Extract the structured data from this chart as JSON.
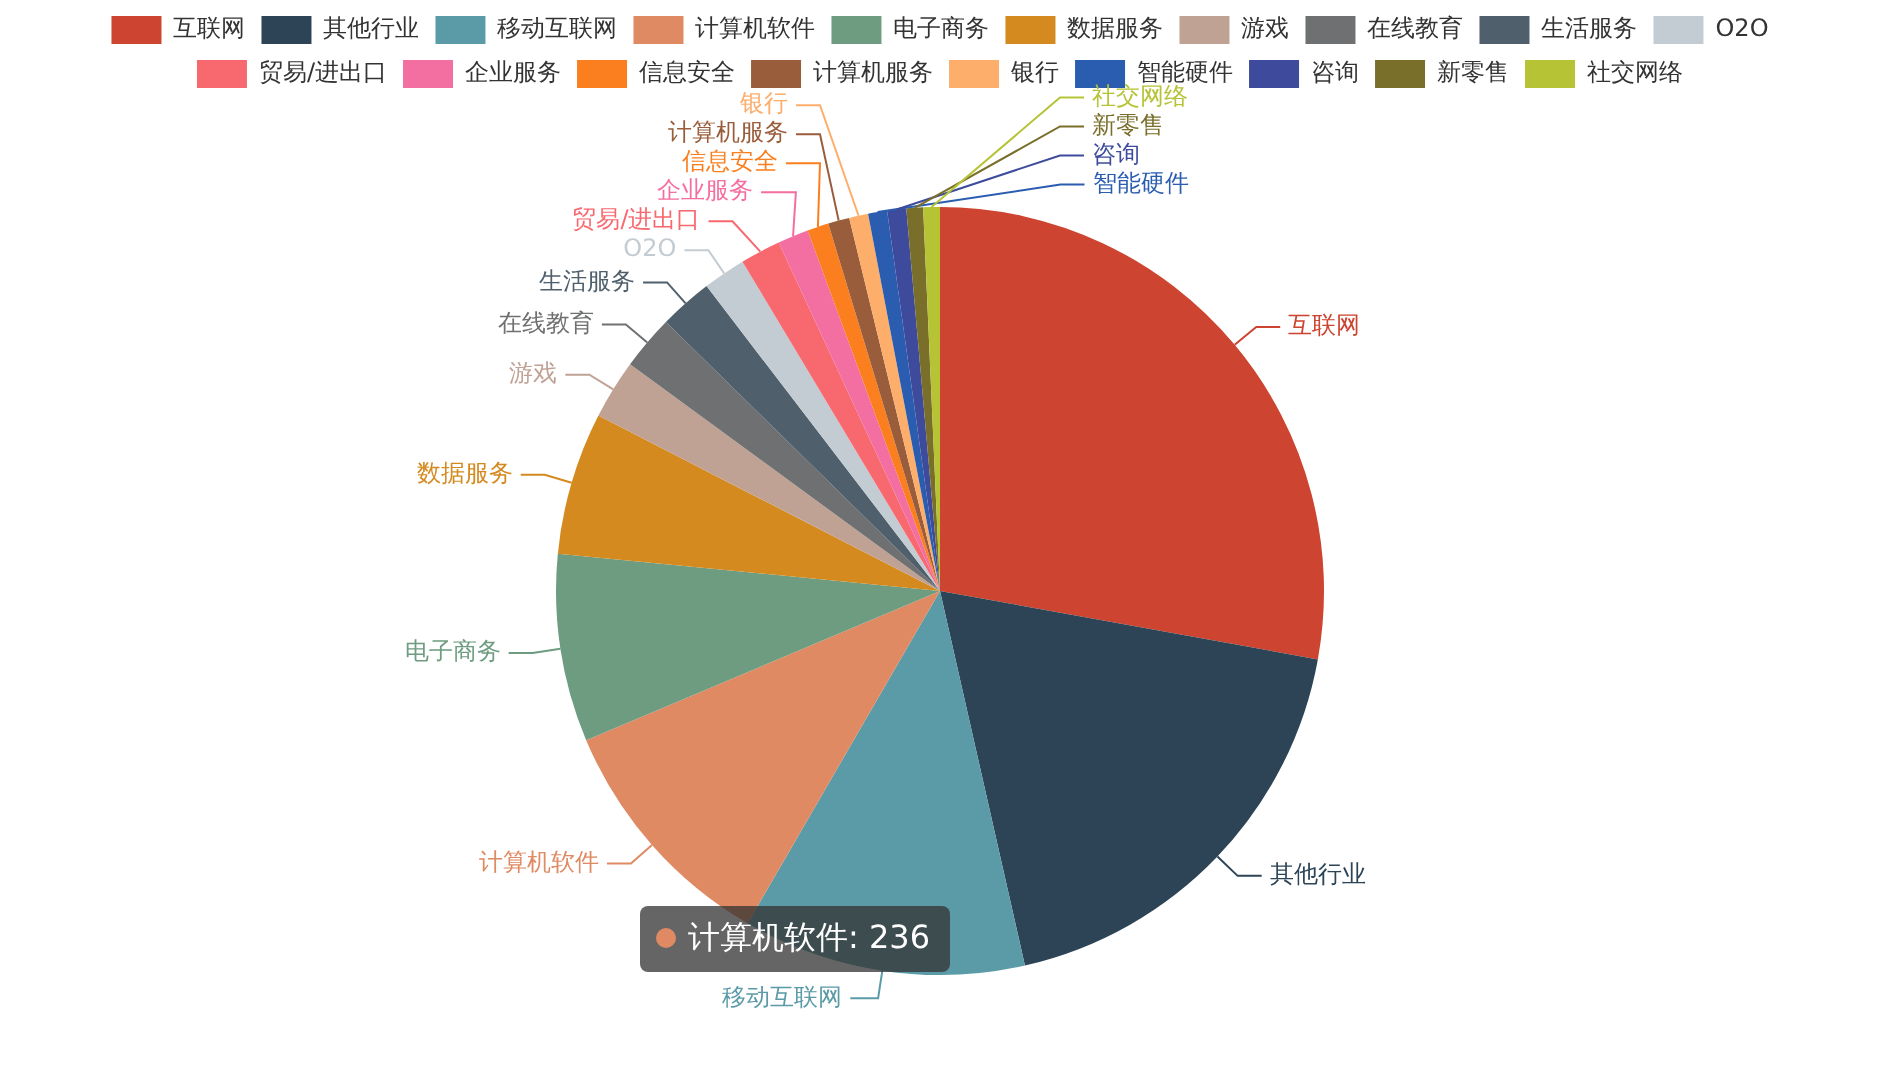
{
  "chart_data": {
    "type": "pie",
    "legend": "top",
    "categories": [
      "互联网",
      "其他行业",
      "移动互联网",
      "计算机软件",
      "电子商务",
      "数据服务",
      "游戏",
      "在线教育",
      "生活服务",
      "O2O",
      "贸易/进出口",
      "企业服务",
      "信息安全",
      "计算机服务",
      "银行",
      "智能硬件",
      "咨询",
      "新零售",
      "社交网络"
    ],
    "values": [
      27.85,
      18.6,
      11.9,
      10.3,
      7.9,
      6.0,
      2.5,
      2.3,
      2.25,
      1.8,
      1.7,
      1.3,
      0.9,
      0.9,
      0.8,
      0.8,
      0.8,
      0.7,
      0.7
    ],
    "colors": [
      "#cd4430",
      "#2d4456",
      "#5b9ba8",
      "#e08a63",
      "#6e9c80",
      "#d48a1f",
      "#c0a295",
      "#6f7072",
      "#4f5f6c",
      "#c4ccd3",
      "#f8686f",
      "#f46fa1",
      "#fc7f1f",
      "#9a5d3b",
      "#fdae6b",
      "#2a5db0",
      "#3e4b9c",
      "#7a6f2a",
      "#b5c334"
    ],
    "annotations": [
      "计算机软件: 236"
    ]
  }
}
